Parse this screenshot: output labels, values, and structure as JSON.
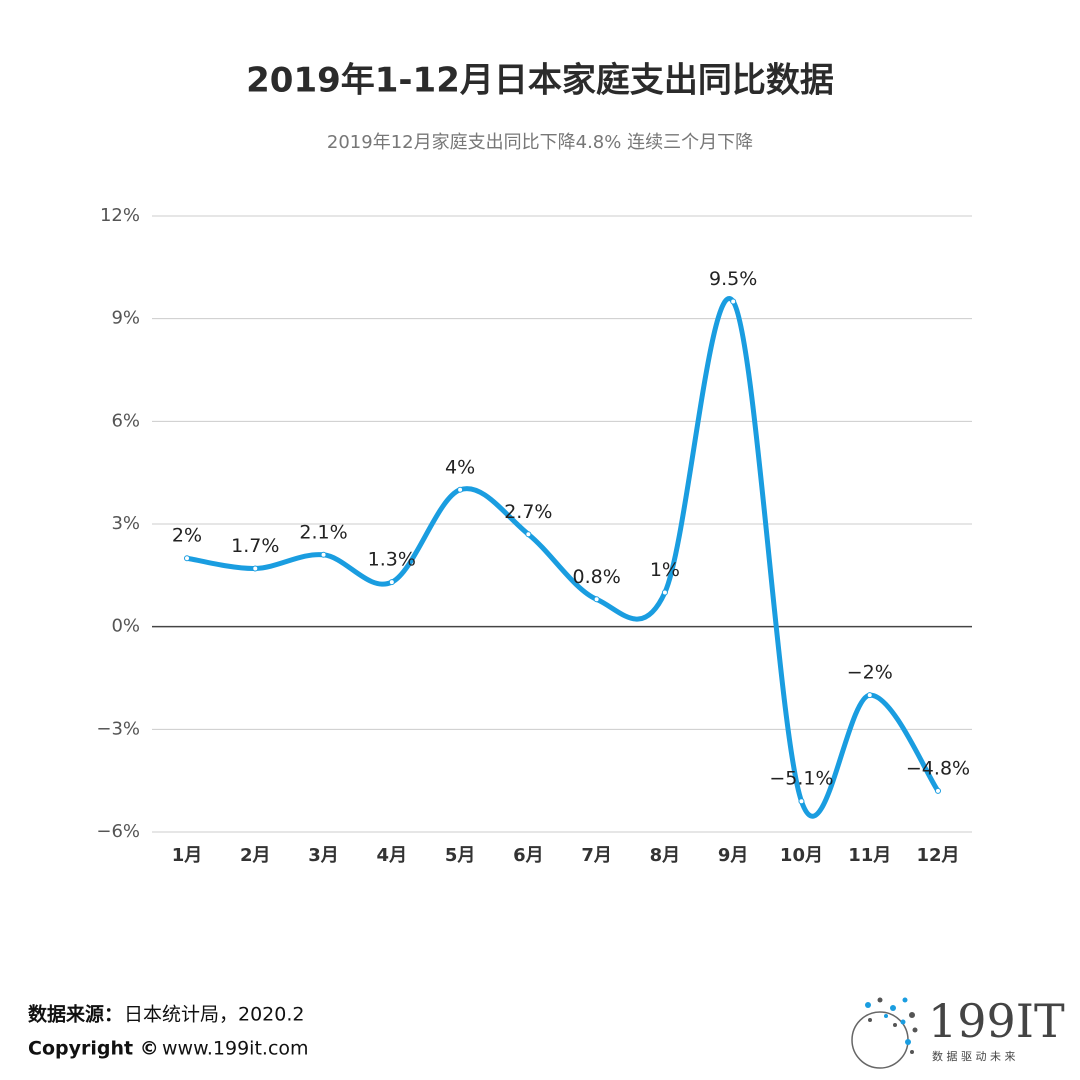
{
  "chart_data": {
    "type": "line",
    "title": "2019年1-12月日本家庭支出同比数据",
    "subtitle": "2019年12月家庭支出同比下降4.8%   连续三个月下降",
    "categories": [
      "1月",
      "2月",
      "3月",
      "4月",
      "5月",
      "6月",
      "7月",
      "8月",
      "9月",
      "10月",
      "11月",
      "12月"
    ],
    "values": [
      2,
      1.7,
      2.1,
      1.3,
      4,
      2.7,
      0.8,
      1,
      9.5,
      -5.1,
      -2,
      -4.8
    ],
    "value_labels": [
      "2%",
      "1.7%",
      "2.1%",
      "1.3%",
      "4%",
      "2.7%",
      "0.8%",
      "1%",
      "9.5%",
      "−5.1%",
      "−2%",
      "−4.8%"
    ],
    "color": "#1a9de0",
    "ylim": [
      -6,
      12
    ],
    "yticks": [
      {
        "value": -6,
        "label": "−6%"
      },
      {
        "value": -3,
        "label": "−3%"
      },
      {
        "value": 0,
        "label": "0%"
      },
      {
        "value": 3,
        "label": "3%"
      },
      {
        "value": 6,
        "label": "6%"
      },
      {
        "value": 9,
        "label": "9%"
      },
      {
        "value": 12,
        "label": "12%"
      }
    ],
    "grid": true
  },
  "footer": {
    "source_label": "数据来源：",
    "source": "日本统计局，2020.2",
    "copyright": "Copyright ©",
    "url": "www.199it.com",
    "logo": "199IT",
    "slogan": "数 据 驱 动 未 来"
  }
}
